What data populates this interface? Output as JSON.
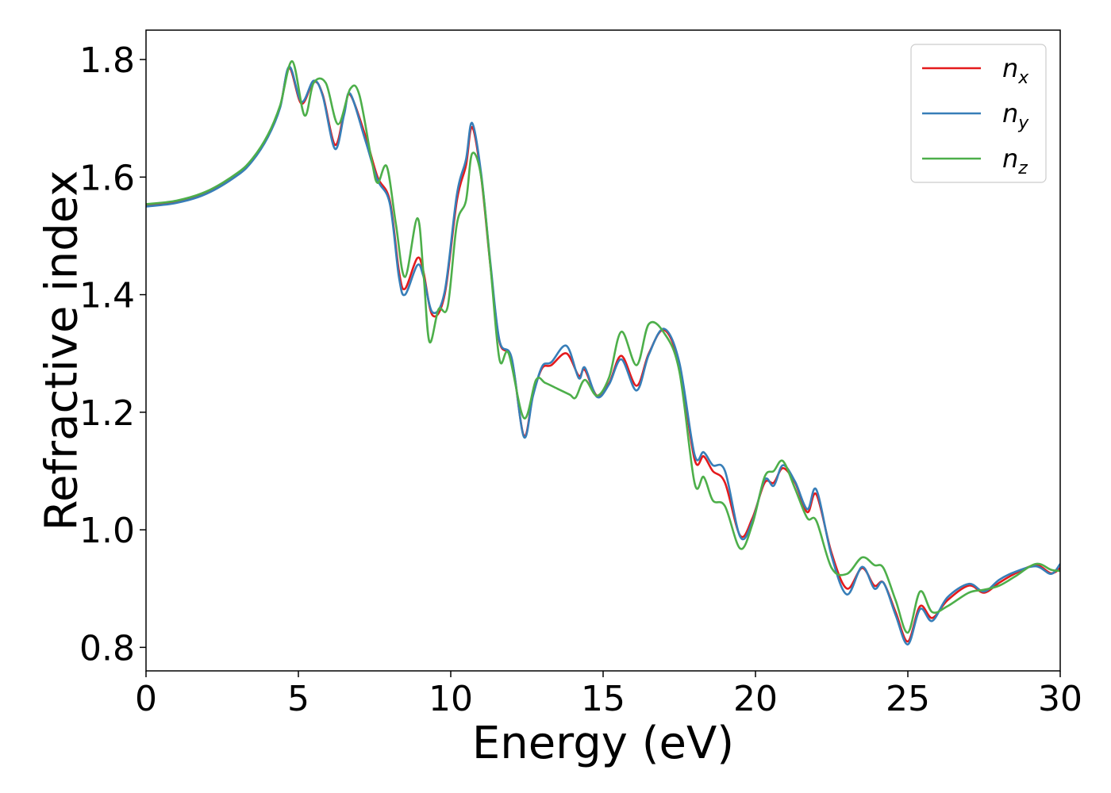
{
  "chart_data": {
    "type": "line",
    "title": "",
    "xlabel": "Energy (eV)",
    "ylabel": "Refractive index",
    "xlim": [
      0,
      30
    ],
    "ylim": [
      0.76,
      1.85
    ],
    "xticks": [
      0,
      5,
      10,
      15,
      20,
      25,
      30
    ],
    "xtick_labels": [
      "0",
      "5",
      "10",
      "15",
      "20",
      "25",
      "30"
    ],
    "yticks": [
      0.8,
      1.0,
      1.2,
      1.4,
      1.6,
      1.8
    ],
    "ytick_labels": [
      "0.8",
      "1.0",
      "1.2",
      "1.4",
      "1.6",
      "1.8"
    ],
    "grid": false,
    "legend_position": "top-right",
    "series": [
      {
        "name": "n",
        "sub": "x",
        "color": "#e41a1c",
        "points": [
          [
            0,
            1.552
          ],
          [
            1,
            1.558
          ],
          [
            2,
            1.574
          ],
          [
            3,
            1.605
          ],
          [
            3.5,
            1.63
          ],
          [
            4,
            1.67
          ],
          [
            4.4,
            1.72
          ],
          [
            4.7,
            1.785
          ],
          [
            5.1,
            1.725
          ],
          [
            5.5,
            1.762
          ],
          [
            5.8,
            1.74
          ],
          [
            6.2,
            1.655
          ],
          [
            6.5,
            1.71
          ],
          [
            6.7,
            1.74
          ],
          [
            7.2,
            1.67
          ],
          [
            7.6,
            1.6
          ],
          [
            8.0,
            1.56
          ],
          [
            8.3,
            1.44
          ],
          [
            8.5,
            1.41
          ],
          [
            8.9,
            1.462
          ],
          [
            9.1,
            1.44
          ],
          [
            9.4,
            1.365
          ],
          [
            9.8,
            1.4
          ],
          [
            10.2,
            1.56
          ],
          [
            10.5,
            1.62
          ],
          [
            10.7,
            1.685
          ],
          [
            11.0,
            1.6
          ],
          [
            11.3,
            1.45
          ],
          [
            11.6,
            1.32
          ],
          [
            12.0,
            1.29
          ],
          [
            12.4,
            1.16
          ],
          [
            12.7,
            1.23
          ],
          [
            13.0,
            1.275
          ],
          [
            13.3,
            1.28
          ],
          [
            13.8,
            1.3
          ],
          [
            14.2,
            1.262
          ],
          [
            14.4,
            1.272
          ],
          [
            14.8,
            1.228
          ],
          [
            15.2,
            1.25
          ],
          [
            15.6,
            1.296
          ],
          [
            16.1,
            1.245
          ],
          [
            16.5,
            1.3
          ],
          [
            17.0,
            1.34
          ],
          [
            17.5,
            1.28
          ],
          [
            18.0,
            1.12
          ],
          [
            18.3,
            1.125
          ],
          [
            18.6,
            1.1
          ],
          [
            19.0,
            1.08
          ],
          [
            19.5,
            0.99
          ],
          [
            19.9,
            1.02
          ],
          [
            20.3,
            1.08
          ],
          [
            20.6,
            1.08
          ],
          [
            20.9,
            1.105
          ],
          [
            21.3,
            1.08
          ],
          [
            21.7,
            1.03
          ],
          [
            22.0,
            1.06
          ],
          [
            22.5,
            0.96
          ],
          [
            23.0,
            0.9
          ],
          [
            23.5,
            0.935
          ],
          [
            23.9,
            0.905
          ],
          [
            24.2,
            0.91
          ],
          [
            24.6,
            0.86
          ],
          [
            25.0,
            0.81
          ],
          [
            25.4,
            0.87
          ],
          [
            25.8,
            0.85
          ],
          [
            26.3,
            0.88
          ],
          [
            27.0,
            0.905
          ],
          [
            27.5,
            0.893
          ],
          [
            28.0,
            0.91
          ],
          [
            28.5,
            0.925
          ],
          [
            29.2,
            0.94
          ],
          [
            29.7,
            0.926
          ],
          [
            30.0,
            0.935
          ]
        ]
      },
      {
        "name": "n",
        "sub": "y",
        "color": "#377eb8",
        "points": [
          [
            0,
            1.55
          ],
          [
            1,
            1.556
          ],
          [
            2,
            1.572
          ],
          [
            3,
            1.603
          ],
          [
            3.5,
            1.628
          ],
          [
            4,
            1.668
          ],
          [
            4.4,
            1.718
          ],
          [
            4.7,
            1.788
          ],
          [
            5.1,
            1.728
          ],
          [
            5.5,
            1.764
          ],
          [
            5.8,
            1.738
          ],
          [
            6.2,
            1.648
          ],
          [
            6.5,
            1.706
          ],
          [
            6.7,
            1.742
          ],
          [
            7.2,
            1.662
          ],
          [
            7.6,
            1.595
          ],
          [
            8.0,
            1.555
          ],
          [
            8.3,
            1.43
          ],
          [
            8.5,
            1.4
          ],
          [
            8.9,
            1.45
          ],
          [
            9.1,
            1.432
          ],
          [
            9.4,
            1.37
          ],
          [
            9.8,
            1.405
          ],
          [
            10.2,
            1.57
          ],
          [
            10.5,
            1.63
          ],
          [
            10.7,
            1.692
          ],
          [
            11.0,
            1.605
          ],
          [
            11.3,
            1.455
          ],
          [
            11.6,
            1.322
          ],
          [
            12.0,
            1.292
          ],
          [
            12.4,
            1.158
          ],
          [
            12.7,
            1.228
          ],
          [
            13.0,
            1.278
          ],
          [
            13.3,
            1.285
          ],
          [
            13.8,
            1.313
          ],
          [
            14.2,
            1.258
          ],
          [
            14.4,
            1.276
          ],
          [
            14.8,
            1.226
          ],
          [
            15.2,
            1.248
          ],
          [
            15.6,
            1.29
          ],
          [
            16.1,
            1.237
          ],
          [
            16.5,
            1.298
          ],
          [
            17.0,
            1.342
          ],
          [
            17.5,
            1.285
          ],
          [
            18.0,
            1.128
          ],
          [
            18.3,
            1.132
          ],
          [
            18.6,
            1.11
          ],
          [
            19.0,
            1.1
          ],
          [
            19.5,
            0.988
          ],
          [
            19.9,
            1.015
          ],
          [
            20.3,
            1.085
          ],
          [
            20.6,
            1.075
          ],
          [
            20.9,
            1.11
          ],
          [
            21.3,
            1.082
          ],
          [
            21.7,
            1.035
          ],
          [
            22.0,
            1.068
          ],
          [
            22.5,
            0.955
          ],
          [
            23.0,
            0.89
          ],
          [
            23.5,
            0.937
          ],
          [
            23.9,
            0.9
          ],
          [
            24.2,
            0.91
          ],
          [
            24.6,
            0.855
          ],
          [
            25.0,
            0.805
          ],
          [
            25.4,
            0.865
          ],
          [
            25.8,
            0.845
          ],
          [
            26.3,
            0.885
          ],
          [
            27.0,
            0.908
          ],
          [
            27.5,
            0.895
          ],
          [
            28.0,
            0.915
          ],
          [
            28.5,
            0.928
          ],
          [
            29.2,
            0.938
          ],
          [
            29.7,
            0.925
          ],
          [
            30.0,
            0.942
          ]
        ]
      },
      {
        "name": "n",
        "sub": "z",
        "color": "#4daf4a",
        "points": [
          [
            0,
            1.554
          ],
          [
            1,
            1.56
          ],
          [
            2,
            1.576
          ],
          [
            3,
            1.607
          ],
          [
            3.5,
            1.632
          ],
          [
            4,
            1.672
          ],
          [
            4.4,
            1.722
          ],
          [
            4.8,
            1.797
          ],
          [
            5.2,
            1.705
          ],
          [
            5.5,
            1.76
          ],
          [
            5.9,
            1.76
          ],
          [
            6.3,
            1.69
          ],
          [
            6.7,
            1.75
          ],
          [
            7.0,
            1.74
          ],
          [
            7.4,
            1.63
          ],
          [
            7.6,
            1.59
          ],
          [
            7.9,
            1.618
          ],
          [
            8.2,
            1.52
          ],
          [
            8.5,
            1.43
          ],
          [
            8.9,
            1.53
          ],
          [
            9.1,
            1.44
          ],
          [
            9.3,
            1.32
          ],
          [
            9.6,
            1.375
          ],
          [
            9.9,
            1.38
          ],
          [
            10.2,
            1.52
          ],
          [
            10.5,
            1.56
          ],
          [
            10.7,
            1.64
          ],
          [
            11.0,
            1.6
          ],
          [
            11.3,
            1.45
          ],
          [
            11.6,
            1.29
          ],
          [
            11.9,
            1.3
          ],
          [
            12.4,
            1.19
          ],
          [
            12.8,
            1.255
          ],
          [
            13.1,
            1.25
          ],
          [
            13.5,
            1.24
          ],
          [
            13.9,
            1.23
          ],
          [
            14.1,
            1.225
          ],
          [
            14.4,
            1.255
          ],
          [
            14.8,
            1.228
          ],
          [
            15.2,
            1.26
          ],
          [
            15.6,
            1.337
          ],
          [
            16.1,
            1.28
          ],
          [
            16.5,
            1.35
          ],
          [
            17.0,
            1.335
          ],
          [
            17.5,
            1.27
          ],
          [
            18.0,
            1.08
          ],
          [
            18.3,
            1.09
          ],
          [
            18.6,
            1.05
          ],
          [
            19.0,
            1.04
          ],
          [
            19.5,
            0.968
          ],
          [
            19.9,
            1.01
          ],
          [
            20.3,
            1.09
          ],
          [
            20.6,
            1.1
          ],
          [
            20.9,
            1.117
          ],
          [
            21.3,
            1.07
          ],
          [
            21.7,
            1.02
          ],
          [
            22.0,
            1.015
          ],
          [
            22.5,
            0.935
          ],
          [
            23.0,
            0.925
          ],
          [
            23.5,
            0.953
          ],
          [
            23.9,
            0.94
          ],
          [
            24.2,
            0.935
          ],
          [
            24.6,
            0.88
          ],
          [
            25.0,
            0.825
          ],
          [
            25.4,
            0.895
          ],
          [
            25.8,
            0.86
          ],
          [
            26.3,
            0.87
          ],
          [
            27.0,
            0.893
          ],
          [
            27.5,
            0.898
          ],
          [
            28.0,
            0.905
          ],
          [
            28.5,
            0.92
          ],
          [
            29.2,
            0.942
          ],
          [
            29.7,
            0.932
          ],
          [
            30.0,
            0.93
          ]
        ]
      }
    ]
  }
}
